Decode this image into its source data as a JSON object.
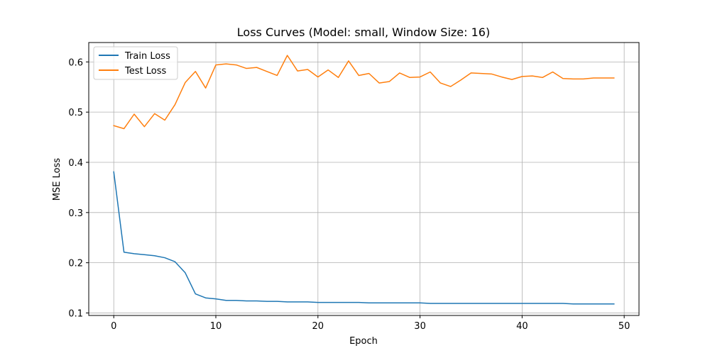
{
  "chart_data": {
    "type": "line",
    "title": "Loss Curves (Model: small, Window Size: 16)",
    "xlabel": "Epoch",
    "ylabel": "MSE Loss",
    "xlim": [
      -2.45,
      51.45
    ],
    "ylim": [
      0.095,
      0.6386
    ],
    "xticks": [
      0,
      10,
      20,
      30,
      40,
      50
    ],
    "yticks": [
      0.1,
      0.2,
      0.3,
      0.4,
      0.5,
      0.6
    ],
    "xtick_labels": [
      "0",
      "10",
      "20",
      "30",
      "40",
      "50"
    ],
    "ytick_labels": [
      "0.1",
      "0.2",
      "0.3",
      "0.4",
      "0.5",
      "0.6"
    ],
    "grid": true,
    "legend_position": "top-left",
    "x": [
      0,
      1,
      2,
      3,
      4,
      5,
      6,
      7,
      8,
      9,
      10,
      11,
      12,
      13,
      14,
      15,
      16,
      17,
      18,
      19,
      20,
      21,
      22,
      23,
      24,
      25,
      26,
      27,
      28,
      29,
      30,
      31,
      32,
      33,
      34,
      35,
      36,
      37,
      38,
      39,
      40,
      41,
      42,
      43,
      44,
      45,
      46,
      47,
      48,
      49
    ],
    "series": [
      {
        "name": "Train Loss",
        "color": "#1f77b4",
        "values": [
          0.381,
          0.221,
          0.218,
          0.216,
          0.214,
          0.21,
          0.202,
          0.18,
          0.138,
          0.13,
          0.128,
          0.125,
          0.125,
          0.124,
          0.124,
          0.123,
          0.123,
          0.122,
          0.122,
          0.122,
          0.121,
          0.121,
          0.121,
          0.121,
          0.121,
          0.12,
          0.12,
          0.12,
          0.12,
          0.12,
          0.12,
          0.119,
          0.119,
          0.119,
          0.119,
          0.119,
          0.119,
          0.119,
          0.119,
          0.119,
          0.119,
          0.119,
          0.119,
          0.119,
          0.119,
          0.118,
          0.118,
          0.118,
          0.118,
          0.118
        ]
      },
      {
        "name": "Test Loss",
        "color": "#ff7f0e",
        "values": [
          0.473,
          0.467,
          0.496,
          0.471,
          0.497,
          0.484,
          0.515,
          0.559,
          0.581,
          0.548,
          0.594,
          0.596,
          0.594,
          0.587,
          0.589,
          0.581,
          0.573,
          0.613,
          0.582,
          0.585,
          0.57,
          0.584,
          0.569,
          0.602,
          0.573,
          0.577,
          0.558,
          0.561,
          0.578,
          0.569,
          0.57,
          0.58,
          0.558,
          0.551,
          0.564,
          0.578,
          0.577,
          0.576,
          0.57,
          0.565,
          0.571,
          0.572,
          0.569,
          0.58,
          0.567,
          0.566,
          0.566,
          0.568,
          0.568,
          0.568
        ]
      }
    ]
  }
}
